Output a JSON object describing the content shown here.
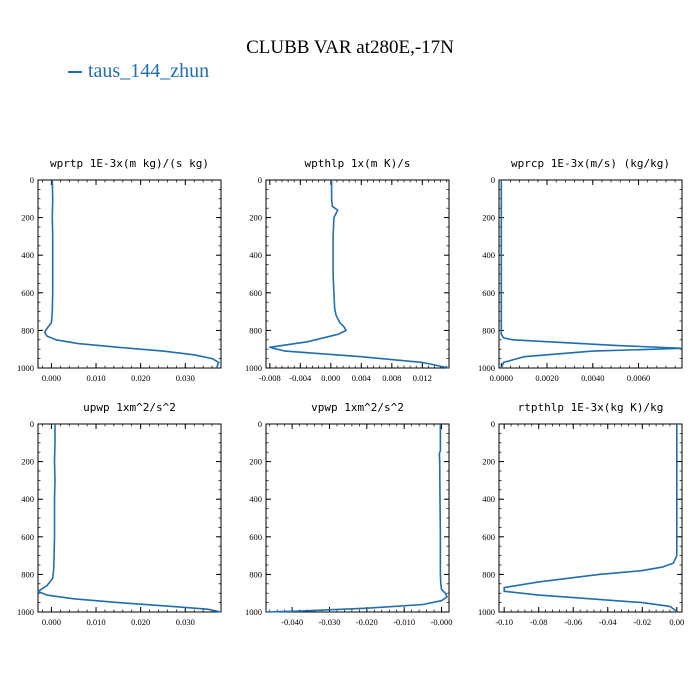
{
  "figure": {
    "title": "CLUBB VAR at280E,-17N",
    "legend_label": "taus_144_zhun",
    "series_color": "#1f6fb0"
  },
  "chart_data": [
    {
      "type": "line",
      "title": "wprtp   1E-3x(m kg)/(s kg)",
      "xlim": [
        -0.003,
        0.038
      ],
      "ylim": [
        1000,
        0
      ],
      "xticks": [
        0.0,
        0.01,
        0.02,
        0.03
      ],
      "xtick_labels": [
        "0.000",
        "0.010",
        "0.020",
        "0.030"
      ],
      "yticks": [
        0,
        200,
        400,
        600,
        800,
        1000
      ],
      "ytick_labels": [
        "0",
        "200",
        "400",
        "600",
        "800",
        "1000"
      ],
      "series": [
        {
          "name": "taus_144_zhun",
          "x": [
            0.0002,
            0.0003,
            0.0002,
            0.0003,
            0.0003,
            0.0003,
            0.0003,
            0.0002,
            0.0,
            -0.001,
            -0.0015,
            -0.001,
            0.001,
            0.006,
            0.015,
            0.025,
            0.032,
            0.036,
            0.0375,
            0.037
          ],
          "y": [
            0,
            100,
            200,
            300,
            400,
            500,
            600,
            700,
            760,
            790,
            810,
            830,
            850,
            870,
            890,
            910,
            930,
            950,
            970,
            1000
          ]
        }
      ]
    },
    {
      "type": "line",
      "title": "wpthlp   1x(m K)/s",
      "xlim": [
        -0.0085,
        0.0155
      ],
      "ylim": [
        1000,
        0
      ],
      "xticks": [
        -0.008,
        -0.004,
        0.0,
        0.004,
        0.008,
        0.012
      ],
      "xtick_labels": [
        "-0.008",
        "-0.004",
        "0.000",
        "0.004",
        "0.008",
        "0.012"
      ],
      "yticks": [
        0,
        200,
        400,
        600,
        800,
        1000
      ],
      "ytick_labels": [
        "0",
        "200",
        "400",
        "600",
        "800",
        "1000"
      ],
      "series": [
        {
          "name": "taus_144_zhun",
          "x": [
            0.0001,
            0.0001,
            0.0002,
            0.0009,
            0.0004,
            0.0003,
            0.0003,
            0.0003,
            0.0004,
            0.0005,
            0.0007,
            0.0012,
            0.0017,
            0.002,
            0.001,
            -0.003,
            -0.008,
            -0.006,
            0.004,
            0.012,
            0.0155
          ],
          "y": [
            0,
            100,
            140,
            160,
            200,
            300,
            400,
            500,
            600,
            680,
            720,
            760,
            780,
            800,
            820,
            860,
            890,
            910,
            940,
            970,
            1000
          ]
        }
      ]
    },
    {
      "type": "line",
      "title": "wprcp   1E-3x(m/s) (kg/kg)",
      "xlim": [
        -0.0001,
        0.0079
      ],
      "ylim": [
        1000,
        0
      ],
      "xticks": [
        0.0,
        0.002,
        0.004,
        0.006
      ],
      "xtick_labels": [
        "0.0000",
        "0.0020",
        "0.0040",
        "0.0060"
      ],
      "yticks": [
        0,
        200,
        400,
        600,
        800,
        1000
      ],
      "ytick_labels": [
        "0",
        "200",
        "400",
        "600",
        "800",
        "1000"
      ],
      "series": [
        {
          "name": "taus_144_zhun",
          "x": [
            0.0,
            0.0,
            0.0,
            0.0,
            0.0,
            0.0,
            0.0,
            0.0,
            0.0001,
            0.0005,
            0.002,
            0.005,
            0.0079,
            0.004,
            0.001,
            0.0001,
            0.0
          ],
          "y": [
            0,
            200,
            400,
            600,
            700,
            780,
            800,
            820,
            840,
            850,
            860,
            880,
            895,
            910,
            940,
            970,
            1000
          ]
        }
      ]
    },
    {
      "type": "line",
      "title": "upwp   1xm^2/s^2",
      "xlim": [
        -0.003,
        0.038
      ],
      "ylim": [
        1000,
        0
      ],
      "xticks": [
        0.0,
        0.01,
        0.02,
        0.03
      ],
      "xtick_labels": [
        "0.000",
        "0.010",
        "0.020",
        "0.030"
      ],
      "yticks": [
        0,
        200,
        400,
        600,
        800,
        1000
      ],
      "ytick_labels": [
        "0",
        "200",
        "400",
        "600",
        "800",
        "1000"
      ],
      "series": [
        {
          "name": "taus_144_zhun",
          "x": [
            0.0008,
            0.0008,
            0.0007,
            0.0008,
            0.0007,
            0.0007,
            0.0007,
            0.0006,
            0.0005,
            0.0003,
            -0.001,
            -0.003,
            -0.001,
            0.005,
            0.015,
            0.027,
            0.035,
            0.038
          ],
          "y": [
            0,
            100,
            200,
            300,
            400,
            500,
            600,
            700,
            780,
            820,
            860,
            890,
            910,
            930,
            950,
            970,
            985,
            1000
          ]
        }
      ]
    },
    {
      "type": "line",
      "title": "vpwp   1xm^2/s^2",
      "xlim": [
        -0.047,
        0.002
      ],
      "ylim": [
        1000,
        0
      ],
      "xticks": [
        -0.04,
        -0.03,
        -0.02,
        -0.01,
        0.0
      ],
      "xtick_labels": [
        "-0.040",
        "-0.030",
        "-0.020",
        "-0.010",
        "-0.000"
      ],
      "yticks": [
        0,
        200,
        400,
        600,
        800,
        1000
      ],
      "ytick_labels": [
        "0",
        "200",
        "400",
        "600",
        "800",
        "1000"
      ],
      "series": [
        {
          "name": "taus_144_zhun",
          "x": [
            -0.0003,
            -0.0003,
            -0.0003,
            -0.0006,
            -0.0005,
            -0.0004,
            -0.0003,
            -0.0003,
            -0.0002,
            0.0,
            0.001,
            0.0015,
            0.0,
            -0.005,
            -0.02,
            -0.038,
            -0.047
          ],
          "y": [
            0,
            100,
            140,
            160,
            200,
            400,
            600,
            800,
            850,
            880,
            900,
            920,
            940,
            960,
            980,
            995,
            1000
          ]
        }
      ]
    },
    {
      "type": "line",
      "title": "rtpthlp   1E-3x(kg K)/kg",
      "xlim": [
        -0.103,
        0.003
      ],
      "ylim": [
        1000,
        0
      ],
      "xticks": [
        -0.1,
        -0.08,
        -0.06,
        -0.04,
        -0.02,
        0.0
      ],
      "xtick_labels": [
        "-0.10",
        "-0.08",
        "-0.06",
        "-0.04",
        "-0.02",
        "0.00"
      ],
      "yticks": [
        0,
        200,
        400,
        600,
        800,
        1000
      ],
      "ytick_labels": [
        "0",
        "200",
        "400",
        "600",
        "800",
        "1000"
      ],
      "series": [
        {
          "name": "taus_144_zhun",
          "x": [
            0.0,
            0.0,
            0.0,
            0.0,
            0.0,
            -0.002,
            -0.008,
            -0.02,
            -0.045,
            -0.08,
            -0.1,
            -0.1,
            -0.08,
            -0.05,
            -0.02,
            -0.004,
            -0.001,
            0.0
          ],
          "y": [
            0,
            200,
            400,
            600,
            700,
            740,
            760,
            780,
            800,
            840,
            870,
            890,
            910,
            930,
            950,
            970,
            990,
            1000
          ]
        }
      ]
    }
  ]
}
